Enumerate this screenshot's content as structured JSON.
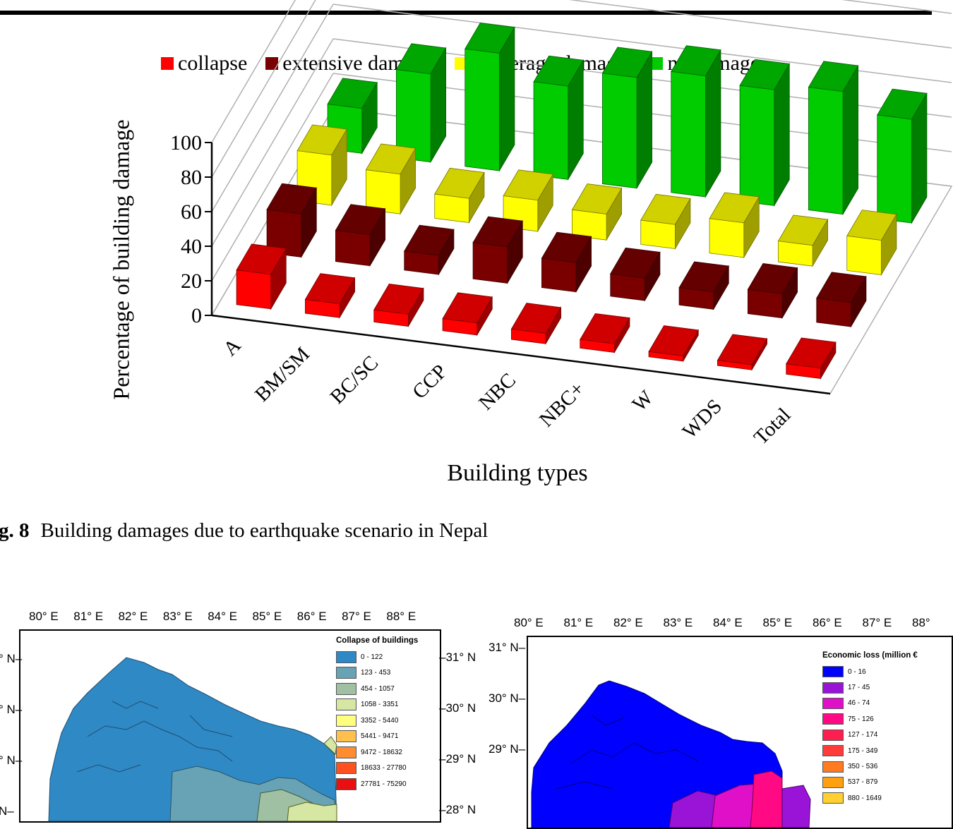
{
  "figure": {
    "caption_label": "g. 8",
    "caption_text": "Building damages due to earthquake scenario in Nepal"
  },
  "chart_data": {
    "type": "bar",
    "subtype": "3d-clustered-bar",
    "title": "",
    "xlabel": "Building types",
    "ylabel": "Percentage of building damage",
    "ylim": [
      0,
      100
    ],
    "yticks": [
      0,
      20,
      40,
      60,
      80,
      100
    ],
    "grid": true,
    "legend_position": "top",
    "categories": [
      "A",
      "BM/SM",
      "BC/SC",
      "CCP",
      "NBC",
      "NBC+",
      "W",
      "WDS",
      "Total"
    ],
    "series": [
      {
        "name": "collapse",
        "color": "#ff0000",
        "values": [
          20,
          8,
          7,
          7,
          6,
          5,
          3,
          3,
          6
        ]
      },
      {
        "name": "extensive damage",
        "color": "#7a0000",
        "values": [
          25,
          18,
          11,
          21,
          17,
          13,
          10,
          14,
          14
        ]
      },
      {
        "name": "moderage damage",
        "color": "#ffff00",
        "values": [
          29,
          23,
          14,
          18,
          15,
          14,
          20,
          12,
          20
        ]
      },
      {
        "name": "no damage",
        "color": "#00cc00",
        "values": [
          26,
          51,
          68,
          54,
          64,
          70,
          67,
          71,
          60
        ]
      }
    ]
  },
  "map_left": {
    "lon_labels": [
      "80° E",
      "81° E",
      "82° E",
      "83° E",
      "84° E",
      "85° E",
      "86° E",
      "87° E",
      "88° E"
    ],
    "lat_left": [
      "° N",
      "° N",
      "° N",
      "N"
    ],
    "lat_right": [
      "31° N",
      "30° N",
      "29° N",
      "28° N"
    ],
    "legend_title": "Collapse of buildings",
    "legend": [
      {
        "label": "0 - 122",
        "color": "#2f89c5"
      },
      {
        "label": "123 - 453",
        "color": "#68a3b5"
      },
      {
        "label": "454 - 1057",
        "color": "#9fc0a2"
      },
      {
        "label": "1058 - 3351",
        "color": "#d6e6a3"
      },
      {
        "label": "3352 - 5440",
        "color": "#ffff7f"
      },
      {
        "label": "5441 - 9471",
        "color": "#ffc04d"
      },
      {
        "label": "9472 - 18632",
        "color": "#ff8c30"
      },
      {
        "label": "18633 - 27780",
        "color": "#ff5020"
      },
      {
        "label": "27781 - 75290",
        "color": "#e81010"
      }
    ]
  },
  "map_right": {
    "lon_labels": [
      "80° E",
      "81° E",
      "82° E",
      "83° E",
      "84° E",
      "85° E",
      "86° E",
      "87° E",
      "88°"
    ],
    "lat_left": [
      "31° N",
      "30° N",
      "29° N"
    ],
    "legend_title": "Economic loss (million €",
    "legend": [
      {
        "label": "0 - 16",
        "color": "#0000ff"
      },
      {
        "label": "17 - 45",
        "color": "#9a14d8"
      },
      {
        "label": "46 - 74",
        "color": "#e010c8"
      },
      {
        "label": "75 - 126",
        "color": "#ff0a84"
      },
      {
        "label": "127 - 174",
        "color": "#ff1e50"
      },
      {
        "label": "175 - 349",
        "color": "#ff3c3c"
      },
      {
        "label": "350 - 536",
        "color": "#ff7a20"
      },
      {
        "label": "537 - 879",
        "color": "#ffa010"
      },
      {
        "label": "880 - 1649",
        "color": "#ffd030"
      }
    ]
  }
}
